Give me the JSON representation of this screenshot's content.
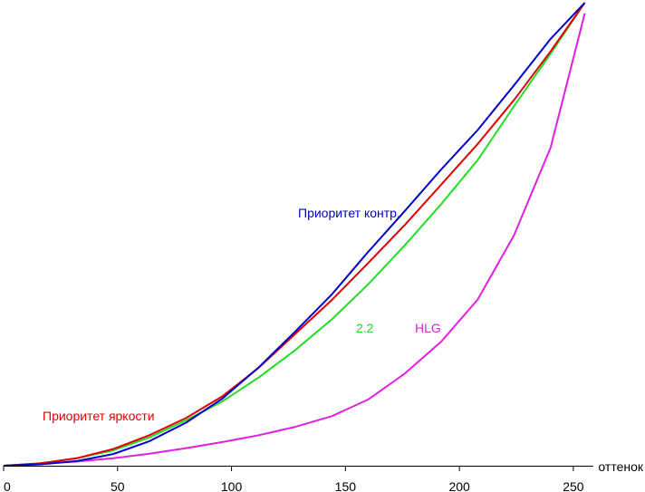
{
  "chart_data": {
    "type": "line",
    "title": "",
    "xlabel": "оттенок",
    "ylabel": "",
    "xlim": [
      0,
      256
    ],
    "ylim": [
      0,
      1
    ],
    "grid": false,
    "x_ticks": [
      0,
      50,
      100,
      150,
      200,
      250
    ],
    "x_tick_labels": [
      "0",
      "50",
      "100",
      "150",
      "200",
      "250"
    ],
    "series": [
      {
        "name": "Приоритет контр.",
        "color": "#0000c8",
        "x": [
          0,
          16,
          32,
          48,
          64,
          80,
          96,
          112,
          128,
          144,
          160,
          176,
          192,
          208,
          224,
          240,
          255
        ],
        "y": [
          0.0,
          0.003,
          0.01,
          0.025,
          0.053,
          0.093,
          0.145,
          0.213,
          0.29,
          0.37,
          0.462,
          0.55,
          0.64,
          0.725,
          0.822,
          0.922,
          1.0
        ]
      },
      {
        "name": "Приоритет яркости",
        "color": "#e00000",
        "x": [
          0,
          16,
          32,
          48,
          64,
          80,
          96,
          112,
          128,
          144,
          160,
          176,
          192,
          208,
          224,
          240,
          255
        ],
        "y": [
          0.0,
          0.005,
          0.016,
          0.036,
          0.066,
          0.103,
          0.15,
          0.212,
          0.285,
          0.358,
          0.438,
          0.52,
          0.607,
          0.695,
          0.79,
          0.895,
          1.0
        ]
      },
      {
        "name": "2.2",
        "color": "#22dd22",
        "x": [
          0,
          16,
          32,
          48,
          64,
          80,
          96,
          112,
          128,
          144,
          160,
          176,
          192,
          208,
          224,
          240,
          255
        ],
        "y": [
          0.0,
          0.005,
          0.016,
          0.033,
          0.061,
          0.098,
          0.139,
          0.191,
          0.25,
          0.316,
          0.392,
          0.476,
          0.565,
          0.66,
          0.777,
          0.89,
          1.0
        ]
      },
      {
        "name": "HLG",
        "color": "#e020e0",
        "x": [
          0,
          16,
          32,
          48,
          64,
          80,
          96,
          112,
          128,
          144,
          160,
          176,
          192,
          208,
          224,
          240,
          255
        ],
        "y": [
          0.0,
          0.004,
          0.009,
          0.016,
          0.026,
          0.038,
          0.051,
          0.066,
          0.084,
          0.107,
          0.143,
          0.199,
          0.268,
          0.359,
          0.498,
          0.687,
          0.977
        ]
      }
    ],
    "annotations": [
      {
        "text": "Приоритет контр.",
        "series": 0,
        "color": "#0000c8"
      },
      {
        "text": "Приоритет яркости",
        "series": 1,
        "color": "#e00000"
      },
      {
        "text": "2.2",
        "series": 2,
        "color": "#22dd22"
      },
      {
        "text": "HLG",
        "series": 3,
        "color": "#e020e0"
      }
    ]
  }
}
